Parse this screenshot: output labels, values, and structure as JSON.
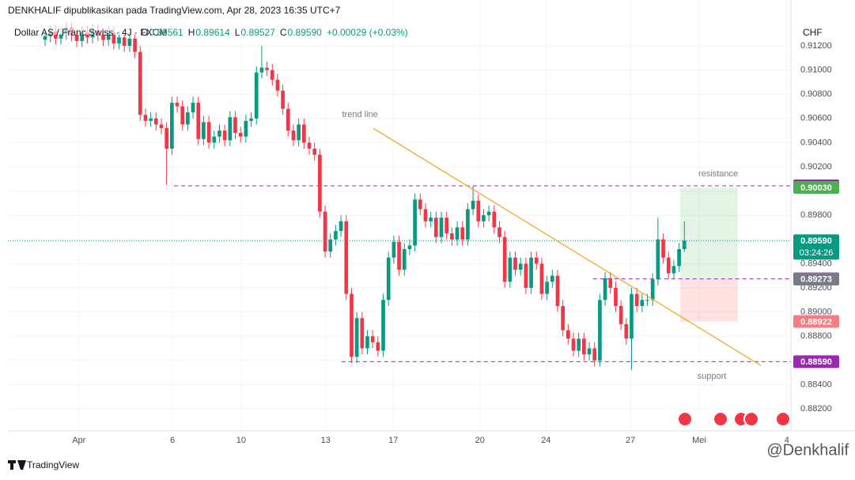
{
  "chart_data": {
    "type": "candlestick",
    "publisher": "DENKHALIF dipublikasikan pada TradingView.com, Apr 28, 2023 16:35 UTC+7",
    "symbol": "Dollar AS / Franc Swiss · 4J · FXCM",
    "ohlc_header": [
      {
        "key": "O",
        "value": "0.89561"
      },
      {
        "key": "H",
        "value": "0.89614"
      },
      {
        "key": "L",
        "value": "0.89527"
      },
      {
        "key": "C",
        "value": "0.89590"
      }
    ],
    "change": "+0.00029 (+0.03%)",
    "currency": "CHF",
    "up_color": "#089981",
    "down_color": "#f23645",
    "open": [
      0.9125,
      0.9128,
      0.9132,
      0.9126,
      0.913,
      0.9135,
      0.9129,
      0.9124,
      0.9131,
      0.9127,
      0.9133,
      0.9129,
      0.9125,
      0.9131,
      0.9122,
      0.9127,
      0.912,
      0.9126,
      0.9115,
      0.9063,
      0.9058,
      0.906,
      0.9055,
      0.9052,
      0.9035,
      0.9073,
      0.907,
      0.9055,
      0.9065,
      0.9073,
      0.9043,
      0.9057,
      0.904,
      0.9045,
      0.905,
      0.9042,
      0.9061,
      0.9048,
      0.9045,
      0.9058,
      0.906,
      0.9098,
      0.9102,
      0.91,
      0.9092,
      0.9083,
      0.9068,
      0.905,
      0.9042,
      0.9055,
      0.904,
      0.9035,
      0.903,
      0.8983,
      0.895,
      0.896,
      0.8967,
      0.8975,
      0.8915,
      0.8863,
      0.8895,
      0.887,
      0.888,
      0.8875,
      0.8868,
      0.891,
      0.8945,
      0.8958,
      0.8935,
      0.8952,
      0.8955,
      0.8993,
      0.8985,
      0.8975,
      0.8978,
      0.8962,
      0.8978,
      0.8965,
      0.896,
      0.897,
      0.896,
      0.8985,
      0.8992,
      0.8975,
      0.898,
      0.8983,
      0.897,
      0.8962,
      0.8925,
      0.8945,
      0.8935,
      0.894,
      0.892,
      0.8945,
      0.894,
      0.8915,
      0.8925,
      0.893,
      0.8905,
      0.8885,
      0.8878,
      0.8868,
      0.8878,
      0.8865,
      0.887,
      0.886,
      0.891,
      0.8928,
      0.892,
      0.8905,
      0.889,
      0.8878,
      0.8915,
      0.8905,
      0.891,
      0.891,
      0.8927,
      0.896,
      0.8945,
      0.8932,
      0.8938,
      0.8952
    ],
    "high": [
      0.9133,
      0.9137,
      0.9137,
      0.9135,
      0.914,
      0.914,
      0.9134,
      0.9136,
      0.9136,
      0.9138,
      0.9138,
      0.9134,
      0.9136,
      0.9136,
      0.9132,
      0.9132,
      0.9131,
      0.9131,
      0.912,
      0.9068,
      0.9065,
      0.9065,
      0.906,
      0.9057,
      0.9078,
      0.9078,
      0.9075,
      0.907,
      0.9078,
      0.9078,
      0.9062,
      0.9062,
      0.905,
      0.9055,
      0.9055,
      0.9066,
      0.9066,
      0.9053,
      0.9063,
      0.9065,
      0.9103,
      0.912,
      0.9107,
      0.9105,
      0.9097,
      0.9088,
      0.9073,
      0.9055,
      0.906,
      0.906,
      0.9045,
      0.904,
      0.9035,
      0.8988,
      0.8965,
      0.8972,
      0.898,
      0.898,
      0.892,
      0.89,
      0.89,
      0.8885,
      0.8885,
      0.888,
      0.8915,
      0.895,
      0.8963,
      0.8963,
      0.8957,
      0.896,
      0.8998,
      0.8998,
      0.899,
      0.8983,
      0.8983,
      0.8983,
      0.8983,
      0.897,
      0.8975,
      0.8975,
      0.899,
      0.9004,
      0.8997,
      0.8985,
      0.8988,
      0.8988,
      0.8975,
      0.8967,
      0.895,
      0.895,
      0.8945,
      0.8945,
      0.895,
      0.895,
      0.8945,
      0.893,
      0.8935,
      0.8935,
      0.891,
      0.889,
      0.8883,
      0.8883,
      0.8883,
      0.8875,
      0.8875,
      0.8915,
      0.8933,
      0.8933,
      0.8925,
      0.891,
      0.8895,
      0.892,
      0.892,
      0.8915,
      0.8915,
      0.8932,
      0.8978,
      0.8965,
      0.895,
      0.8943,
      0.8957,
      0.8975
    ],
    "low": [
      0.912,
      0.9123,
      0.9121,
      0.9121,
      0.9125,
      0.9124,
      0.9119,
      0.9119,
      0.9122,
      0.9122,
      0.9124,
      0.912,
      0.912,
      0.9117,
      0.9117,
      0.9115,
      0.9115,
      0.911,
      0.9058,
      0.9053,
      0.9053,
      0.905,
      0.9047,
      0.9005,
      0.903,
      0.9065,
      0.905,
      0.905,
      0.906,
      0.9038,
      0.9038,
      0.9035,
      0.9035,
      0.904,
      0.9037,
      0.9037,
      0.9043,
      0.904,
      0.904,
      0.9053,
      0.9055,
      0.9093,
      0.9095,
      0.9087,
      0.9078,
      0.9063,
      0.9045,
      0.9037,
      0.9037,
      0.9035,
      0.903,
      0.9025,
      0.8978,
      0.8945,
      0.8945,
      0.8955,
      0.8962,
      0.891,
      0.8858,
      0.8858,
      0.8865,
      0.8865,
      0.887,
      0.8863,
      0.8863,
      0.8905,
      0.894,
      0.893,
      0.893,
      0.8947,
      0.895,
      0.898,
      0.897,
      0.897,
      0.8957,
      0.8957,
      0.896,
      0.8955,
      0.8955,
      0.8955,
      0.8955,
      0.898,
      0.897,
      0.897,
      0.8975,
      0.8965,
      0.8957,
      0.892,
      0.892,
      0.893,
      0.893,
      0.8915,
      0.8915,
      0.8935,
      0.891,
      0.891,
      0.892,
      0.89,
      0.888,
      0.8873,
      0.8863,
      0.8863,
      0.886,
      0.886,
      0.8855,
      0.8855,
      0.8905,
      0.8915,
      0.89,
      0.8885,
      0.8873,
      0.8852,
      0.89,
      0.89,
      0.8905,
      0.8905,
      0.8922,
      0.894,
      0.8927,
      0.8927,
      0.8933,
      0.895
    ],
    "close": [
      0.9128,
      0.9132,
      0.9126,
      0.913,
      0.9135,
      0.9129,
      0.9124,
      0.9131,
      0.9127,
      0.9133,
      0.9129,
      0.9125,
      0.9131,
      0.9122,
      0.9127,
      0.912,
      0.9126,
      0.9115,
      0.9063,
      0.9058,
      0.906,
      0.9055,
      0.9052,
      0.9035,
      0.9073,
      0.907,
      0.9055,
      0.9065,
      0.9073,
      0.9043,
      0.9057,
      0.904,
      0.9045,
      0.905,
      0.9042,
      0.9061,
      0.9048,
      0.9045,
      0.9058,
      0.906,
      0.9098,
      0.9102,
      0.91,
      0.9092,
      0.9083,
      0.9068,
      0.905,
      0.9042,
      0.9055,
      0.904,
      0.9035,
      0.903,
      0.8983,
      0.895,
      0.896,
      0.8967,
      0.8975,
      0.8915,
      0.8863,
      0.8895,
      0.887,
      0.888,
      0.8875,
      0.8868,
      0.891,
      0.8945,
      0.8958,
      0.8935,
      0.8952,
      0.8955,
      0.8993,
      0.8985,
      0.8975,
      0.8978,
      0.8962,
      0.8978,
      0.8965,
      0.896,
      0.897,
      0.896,
      0.8985,
      0.8992,
      0.8975,
      0.898,
      0.8983,
      0.897,
      0.8962,
      0.8925,
      0.8945,
      0.8935,
      0.894,
      0.892,
      0.8945,
      0.894,
      0.8915,
      0.8925,
      0.893,
      0.8905,
      0.8885,
      0.8878,
      0.8868,
      0.8878,
      0.8865,
      0.887,
      0.886,
      0.891,
      0.8928,
      0.892,
      0.8905,
      0.889,
      0.8878,
      0.8915,
      0.8905,
      0.891,
      0.891,
      0.8927,
      0.896,
      0.8945,
      0.8932,
      0.8938,
      0.8952,
      0.8959
    ],
    "xlim": [
      -7.04,
      141.17
    ],
    "xticks": [
      {
        "value": 6.4,
        "label": "Apr"
      },
      {
        "value": 24.1,
        "label": "6"
      },
      {
        "value": 37.1,
        "label": "10"
      },
      {
        "value": 53.1,
        "label": "13"
      },
      {
        "value": 65.9,
        "label": "17"
      },
      {
        "value": 82.3,
        "label": "20"
      },
      {
        "value": 94.8,
        "label": "24"
      },
      {
        "value": 110.8,
        "label": "27"
      },
      {
        "value": 123.8,
        "label": "Mei"
      },
      {
        "value": 140.4,
        "label": "4"
      }
    ],
    "ylim": [
      0.88017,
      0.91383
    ],
    "yticks": [
      {
        "value": 0.912,
        "label": "0.91200"
      },
      {
        "value": 0.91,
        "label": "0.91000"
      },
      {
        "value": 0.908,
        "label": "0.90800"
      },
      {
        "value": 0.906,
        "label": "0.90600"
      },
      {
        "value": 0.904,
        "label": "0.90400"
      },
      {
        "value": 0.902,
        "label": "0.90200"
      },
      {
        "value": 0.9,
        "label": "0.90000"
      },
      {
        "value": 0.898,
        "label": "0.89800"
      },
      {
        "value": 0.896,
        "label": "0.89600"
      },
      {
        "value": 0.894,
        "label": "0.89400"
      },
      {
        "value": 0.892,
        "label": "0.89200"
      },
      {
        "value": 0.89,
        "label": "0.89000"
      },
      {
        "value": 0.888,
        "label": "0.88800"
      },
      {
        "value": 0.886,
        "label": "0.88600"
      },
      {
        "value": 0.884,
        "label": "0.88400"
      },
      {
        "value": 0.882,
        "label": "0.88200"
      }
    ],
    "grid": true,
    "price_tags": [
      {
        "value": 0.90043,
        "label": "0.90043",
        "color": "#9c27b0"
      },
      {
        "value": 0.9003,
        "label": "0.90030",
        "color": "#4caf50"
      },
      {
        "value": 0.8959,
        "label": "0.89590",
        "color": "#089981",
        "countdown": "03:24:26"
      },
      {
        "value": 0.89274,
        "label": "0.89274",
        "color": "#9c27b0"
      },
      {
        "value": 0.89273,
        "label": "0.89273",
        "color": "#787b86"
      },
      {
        "value": 0.88922,
        "label": "0.88922",
        "color": "#f77c80"
      },
      {
        "value": 0.8859,
        "label": "0.88590",
        "color": "#9c27b0"
      }
    ],
    "horizontal_lines": [
      {
        "value": 0.90043,
        "x_start": 24.4,
        "color": "#9c27b0"
      },
      {
        "value": 0.89274,
        "x_start": 103.7,
        "color": "#9c27b0"
      },
      {
        "value": 0.8859,
        "x_start": 56.1,
        "color": "#9c27b0"
      }
    ],
    "last_price_line": {
      "value": 0.8959,
      "color": "#089981"
    },
    "trend_line": {
      "x": [
        62.1,
        135.5
      ],
      "y": [
        0.90519,
        0.88557
      ],
      "color": "#f5a623"
    },
    "position": {
      "x": [
        120.2,
        131.1
      ],
      "target": 0.9003,
      "entry": 0.89274,
      "stop": 0.88922
    },
    "annotations": [
      {
        "text": "trend line",
        "x": 59.6,
        "y": 0.90631
      },
      {
        "text": "resistance",
        "x": 127.4,
        "y": 0.90141
      },
      {
        "text": "support",
        "x": 126.2,
        "y": 0.88466
      }
    ],
    "watermark": "@Denkhalif",
    "brand": "TradingView"
  }
}
